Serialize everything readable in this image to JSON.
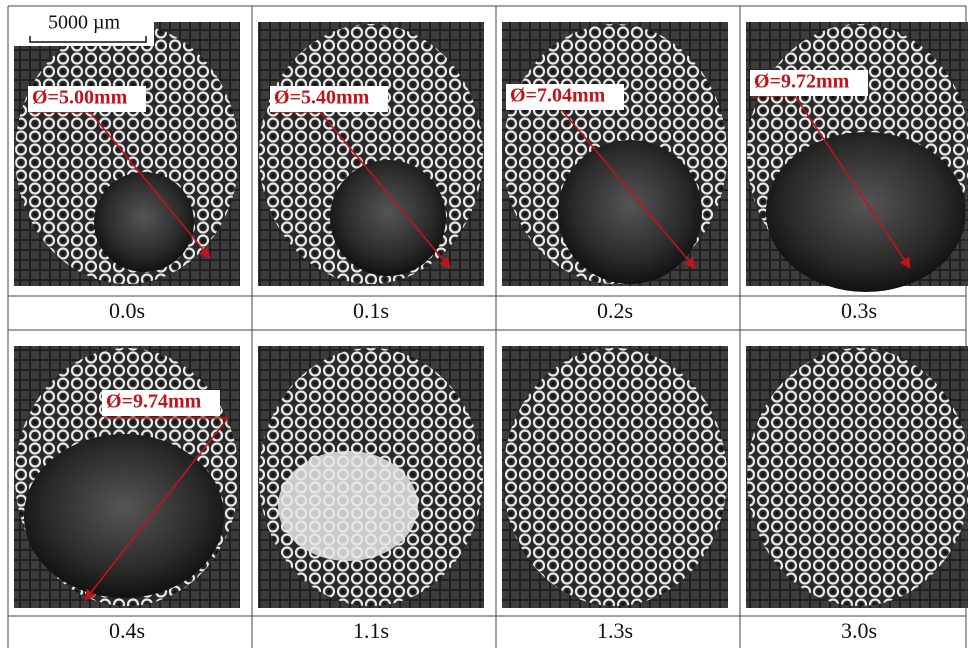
{
  "scale_bar": {
    "label": "5000 µm"
  },
  "panels": [
    {
      "time": "0.0s",
      "diameter": "Ø=5.00mm"
    },
    {
      "time": "0.1s",
      "diameter": "Ø=5.40mm"
    },
    {
      "time": "0.2s",
      "diameter": "Ø=7.04mm"
    },
    {
      "time": "0.3s",
      "diameter": "Ø=9.72mm"
    },
    {
      "time": "0.4s",
      "diameter": "Ø=9.74mm"
    },
    {
      "time": "1.1s"
    },
    {
      "time": "1.3s"
    },
    {
      "time": "3.0s"
    }
  ]
}
